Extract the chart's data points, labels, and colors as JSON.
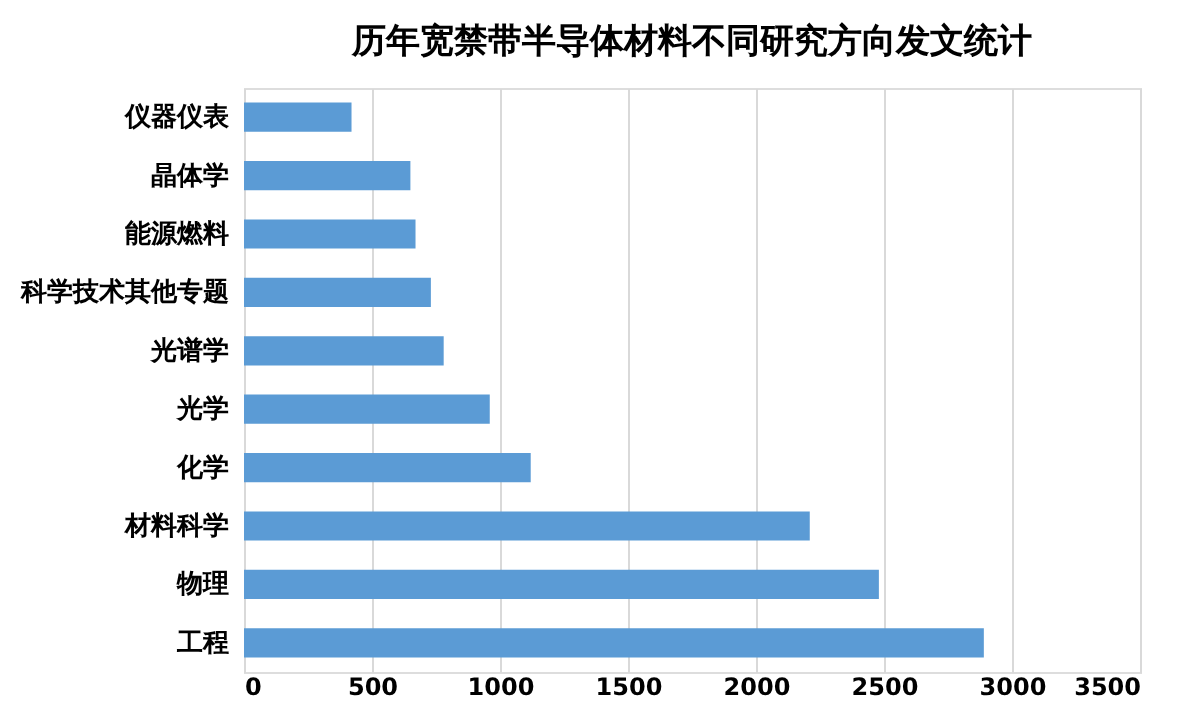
{
  "chart_data": {
    "type": "bar",
    "orientation": "horizontal",
    "title": "历年宽禁带半导体材料不同研究方向发文统计",
    "categories": [
      "仪器仪表",
      "晶体学",
      "能源燃料",
      "科学技术其他专题",
      "光谱学",
      "光学",
      "化学",
      "材料科学",
      "物理",
      "工程"
    ],
    "values": [
      420,
      650,
      670,
      730,
      780,
      960,
      1120,
      2210,
      2480,
      2890
    ],
    "color": "#5b9bd5",
    "xlim": [
      0,
      3500
    ],
    "xticks": [
      0,
      500,
      1000,
      1500,
      2000,
      2500,
      3000,
      3500
    ],
    "grid": "x"
  }
}
